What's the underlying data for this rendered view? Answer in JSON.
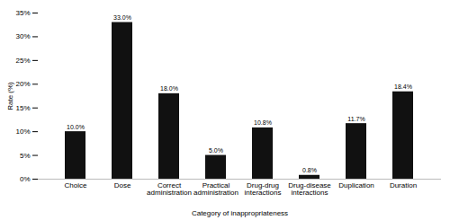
{
  "chart_data": {
    "type": "bar",
    "categories": [
      "Choice",
      "Dose",
      "Correct\nadministration",
      "Practical\nadministration",
      "Drug-drug\ninteractions",
      "Drug-disease\ninteractions",
      "Duplication",
      "Duration"
    ],
    "values": [
      10.0,
      33.0,
      18.0,
      5.0,
      10.8,
      0.8,
      11.7,
      18.4
    ],
    "value_labels": [
      "10.0%",
      "33.0%",
      "18.0%",
      "5.0%",
      "10.8%",
      "0.8%",
      "11.7%",
      "18.4%"
    ],
    "data_labels": true,
    "color": "#111111",
    "xlabel": "Category of inappropriateness",
    "ylabel": "Rate (%)",
    "ylim": [
      0,
      35
    ],
    "yticks": [
      {
        "value": 0,
        "label": "0%"
      },
      {
        "value": 5,
        "label": "5%"
      },
      {
        "value": 10,
        "label": "10%"
      },
      {
        "value": 15,
        "label": "15%"
      },
      {
        "value": 20,
        "label": "20%"
      },
      {
        "value": 25,
        "label": "25%"
      },
      {
        "value": 30,
        "label": "30%"
      },
      {
        "value": 35,
        "label": "35%"
      }
    ]
  }
}
